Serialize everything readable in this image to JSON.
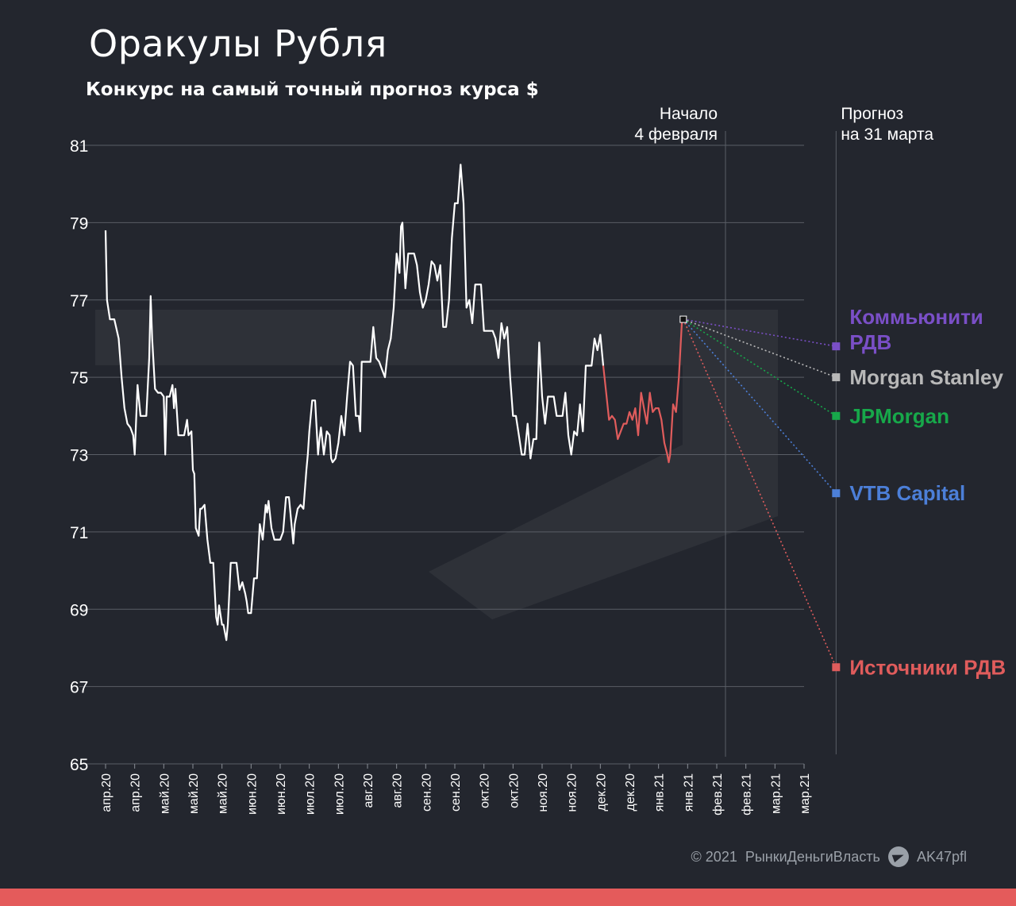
{
  "header": {
    "title": "Оракулы Рубля",
    "subtitle": "Конкурс на самый точный прогноз курса $"
  },
  "footer": {
    "copyright": "© 2021",
    "brand": "РынкиДеньгиВласть",
    "channel": "AK47pfl",
    "icon": "telegram-icon"
  },
  "colors": {
    "background": "#23262e",
    "history_line": "#ffffff",
    "contest_line": "#e05c5c",
    "grid": "#5a5e66",
    "accent_bar": "#e45b5b"
  },
  "chart_data": {
    "type": "line",
    "title": "Оракулы Рубля",
    "subtitle": "Конкурс на самый точный прогноз курса $",
    "ylim": [
      65,
      81
    ],
    "yticks": [
      65,
      67,
      69,
      71,
      73,
      75,
      77,
      79,
      81
    ],
    "grid": true,
    "x_tick_labels": [
      "апр.20",
      "апр.20",
      "май.20",
      "май.20",
      "май.20",
      "июн.20",
      "июн.20",
      "июл.20",
      "июл.20",
      "авг.20",
      "авг.20",
      "сен.20",
      "сен.20",
      "окт.20",
      "окт.20",
      "ноя.20",
      "ноя.20",
      "дек.20",
      "дек.20",
      "янв.21",
      "янв.21",
      "фев.21",
      "фев.21",
      "мар.21",
      "мар.21"
    ],
    "annotations": [
      {
        "text_line1": "Начало",
        "text_line2": "4 февраля",
        "x_index": 21.3
      },
      {
        "text_line1": "Прогноз",
        "text_line2": "на 31 марта",
        "x_index": 25.1
      }
    ],
    "series": [
      {
        "role": "history",
        "color": "#ffffff",
        "points": [
          [
            0,
            78.8
          ],
          [
            0.05,
            77.0
          ],
          [
            0.15,
            76.5
          ],
          [
            0.3,
            76.5
          ],
          [
            0.45,
            76.0
          ],
          [
            0.55,
            75.0
          ],
          [
            0.65,
            74.2
          ],
          [
            0.75,
            73.8
          ],
          [
            0.85,
            73.7
          ],
          [
            0.95,
            73.5
          ],
          [
            1.0,
            73.0
          ],
          [
            1.1,
            74.8
          ],
          [
            1.2,
            74.0
          ],
          [
            1.3,
            74.0
          ],
          [
            1.4,
            74.0
          ],
          [
            1.5,
            75.5
          ],
          [
            1.55,
            77.1
          ],
          [
            1.6,
            76.0
          ],
          [
            1.7,
            74.7
          ],
          [
            1.8,
            74.6
          ],
          [
            1.9,
            74.6
          ],
          [
            2.0,
            74.5
          ],
          [
            2.05,
            73.0
          ],
          [
            2.1,
            74.5
          ],
          [
            2.2,
            74.5
          ],
          [
            2.3,
            74.8
          ],
          [
            2.35,
            74.2
          ],
          [
            2.4,
            74.7
          ],
          [
            2.5,
            73.5
          ],
          [
            2.6,
            73.5
          ],
          [
            2.7,
            73.5
          ],
          [
            2.8,
            73.9
          ],
          [
            2.85,
            73.5
          ],
          [
            2.95,
            73.6
          ],
          [
            3.0,
            72.6
          ],
          [
            3.05,
            72.5
          ],
          [
            3.1,
            71.1
          ],
          [
            3.2,
            70.9
          ],
          [
            3.25,
            71.6
          ],
          [
            3.3,
            71.6
          ],
          [
            3.4,
            71.7
          ],
          [
            3.5,
            70.8
          ],
          [
            3.6,
            70.2
          ],
          [
            3.7,
            70.2
          ],
          [
            3.8,
            68.8
          ],
          [
            3.85,
            68.6
          ],
          [
            3.9,
            69.1
          ],
          [
            4.0,
            68.6
          ],
          [
            4.05,
            68.6
          ],
          [
            4.15,
            68.2
          ],
          [
            4.2,
            68.6
          ],
          [
            4.3,
            70.2
          ],
          [
            4.4,
            70.2
          ],
          [
            4.5,
            70.2
          ],
          [
            4.6,
            69.5
          ],
          [
            4.7,
            69.7
          ],
          [
            4.8,
            69.4
          ],
          [
            4.85,
            69.2
          ],
          [
            4.9,
            68.9
          ],
          [
            5.0,
            68.9
          ],
          [
            5.1,
            69.8
          ],
          [
            5.2,
            69.8
          ],
          [
            5.3,
            71.2
          ],
          [
            5.4,
            70.8
          ],
          [
            5.5,
            71.7
          ],
          [
            5.55,
            71.5
          ],
          [
            5.6,
            71.8
          ],
          [
            5.7,
            71.1
          ],
          [
            5.8,
            70.8
          ],
          [
            5.9,
            70.8
          ],
          [
            6.0,
            70.8
          ],
          [
            6.1,
            71.0
          ],
          [
            6.2,
            71.9
          ],
          [
            6.3,
            71.9
          ],
          [
            6.4,
            71.1
          ],
          [
            6.45,
            70.7
          ],
          [
            6.5,
            71.2
          ],
          [
            6.6,
            71.6
          ],
          [
            6.7,
            71.7
          ],
          [
            6.8,
            71.6
          ],
          [
            6.9,
            72.6
          ],
          [
            6.95,
            73.0
          ],
          [
            7.0,
            73.6
          ],
          [
            7.1,
            74.4
          ],
          [
            7.2,
            74.4
          ],
          [
            7.3,
            73.0
          ],
          [
            7.35,
            73.4
          ],
          [
            7.4,
            73.7
          ],
          [
            7.5,
            73.0
          ],
          [
            7.6,
            73.6
          ],
          [
            7.7,
            73.5
          ],
          [
            7.75,
            72.9
          ],
          [
            7.8,
            72.8
          ],
          [
            7.9,
            72.9
          ],
          [
            8.0,
            73.3
          ],
          [
            8.1,
            74.0
          ],
          [
            8.2,
            73.5
          ],
          [
            8.3,
            74.5
          ],
          [
            8.4,
            75.4
          ],
          [
            8.5,
            75.3
          ],
          [
            8.6,
            74.0
          ],
          [
            8.7,
            74.0
          ],
          [
            8.75,
            73.6
          ],
          [
            8.8,
            75.4
          ],
          [
            8.9,
            75.4
          ],
          [
            9.0,
            75.4
          ],
          [
            9.1,
            75.4
          ],
          [
            9.2,
            76.3
          ],
          [
            9.3,
            75.5
          ],
          [
            9.4,
            75.4
          ],
          [
            9.5,
            75.2
          ],
          [
            9.6,
            75.0
          ],
          [
            9.7,
            75.7
          ],
          [
            9.8,
            76.0
          ],
          [
            9.9,
            76.8
          ],
          [
            10.0,
            78.2
          ],
          [
            10.1,
            77.7
          ],
          [
            10.15,
            78.9
          ],
          [
            10.2,
            79.0
          ],
          [
            10.3,
            77.3
          ],
          [
            10.4,
            78.2
          ],
          [
            10.5,
            78.2
          ],
          [
            10.6,
            78.2
          ],
          [
            10.7,
            77.9
          ],
          [
            10.8,
            77.2
          ],
          [
            10.9,
            76.8
          ],
          [
            11.0,
            77.0
          ],
          [
            11.1,
            77.4
          ],
          [
            11.2,
            78.0
          ],
          [
            11.3,
            77.9
          ],
          [
            11.4,
            77.5
          ],
          [
            11.5,
            77.9
          ],
          [
            11.6,
            76.3
          ],
          [
            11.7,
            76.3
          ],
          [
            11.8,
            77.0
          ],
          [
            11.9,
            78.6
          ],
          [
            12.0,
            79.5
          ],
          [
            12.1,
            79.5
          ],
          [
            12.2,
            80.5
          ],
          [
            12.3,
            79.5
          ],
          [
            12.4,
            76.8
          ],
          [
            12.5,
            77.0
          ],
          [
            12.6,
            76.4
          ],
          [
            12.7,
            77.4
          ],
          [
            12.8,
            77.4
          ],
          [
            12.9,
            77.4
          ],
          [
            13.0,
            76.2
          ],
          [
            13.1,
            76.2
          ],
          [
            13.2,
            76.2
          ],
          [
            13.3,
            76.2
          ],
          [
            13.4,
            76.0
          ],
          [
            13.5,
            75.5
          ],
          [
            13.6,
            76.4
          ],
          [
            13.7,
            76.0
          ],
          [
            13.8,
            76.3
          ],
          [
            13.9,
            75.0
          ],
          [
            14.0,
            74.0
          ],
          [
            14.1,
            74.0
          ],
          [
            14.2,
            73.5
          ],
          [
            14.3,
            73.0
          ],
          [
            14.4,
            73.0
          ],
          [
            14.5,
            73.8
          ],
          [
            14.6,
            72.9
          ],
          [
            14.7,
            73.4
          ],
          [
            14.8,
            73.4
          ],
          [
            14.9,
            75.9
          ],
          [
            15.0,
            74.5
          ],
          [
            15.1,
            73.8
          ],
          [
            15.2,
            74.5
          ],
          [
            15.3,
            74.5
          ],
          [
            15.4,
            74.5
          ],
          [
            15.5,
            74.0
          ],
          [
            15.6,
            74.0
          ],
          [
            15.7,
            74.0
          ],
          [
            15.8,
            74.6
          ],
          [
            15.9,
            73.5
          ],
          [
            16.0,
            73.0
          ],
          [
            16.1,
            73.6
          ],
          [
            16.2,
            73.5
          ],
          [
            16.3,
            74.3
          ],
          [
            16.4,
            73.6
          ],
          [
            16.5,
            75.3
          ],
          [
            16.6,
            75.3
          ],
          [
            16.7,
            75.3
          ],
          [
            16.8,
            76.0
          ],
          [
            16.9,
            75.7
          ],
          [
            17.0,
            76.1
          ],
          [
            17.1,
            75.3
          ]
        ]
      },
      {
        "role": "contest",
        "color": "#e05c5c",
        "points": [
          [
            17.1,
            75.3
          ],
          [
            17.2,
            74.6
          ],
          [
            17.3,
            73.9
          ],
          [
            17.4,
            74.0
          ],
          [
            17.5,
            73.9
          ],
          [
            17.6,
            73.4
          ],
          [
            17.7,
            73.6
          ],
          [
            17.8,
            73.8
          ],
          [
            17.9,
            73.8
          ],
          [
            18.0,
            74.1
          ],
          [
            18.1,
            73.9
          ],
          [
            18.2,
            74.2
          ],
          [
            18.3,
            73.5
          ],
          [
            18.4,
            74.6
          ],
          [
            18.5,
            74.2
          ],
          [
            18.6,
            73.8
          ],
          [
            18.7,
            74.6
          ],
          [
            18.8,
            74.1
          ],
          [
            18.9,
            74.2
          ],
          [
            19.0,
            74.2
          ],
          [
            19.1,
            73.9
          ],
          [
            19.2,
            73.3
          ],
          [
            19.3,
            73.0
          ],
          [
            19.35,
            72.8
          ],
          [
            19.4,
            73.0
          ],
          [
            19.5,
            74.3
          ],
          [
            19.6,
            74.1
          ],
          [
            19.7,
            75.0
          ],
          [
            19.8,
            76.4
          ],
          [
            19.85,
            76.5
          ]
        ]
      }
    ],
    "last_value": 76.5,
    "forecasts": [
      {
        "label_line1": "Коммьюнити",
        "label_line2": "РДВ",
        "value": 75.8,
        "color": "#7a4fc7"
      },
      {
        "label_line1": "Morgan Stanley",
        "label_line2": "",
        "value": 75.0,
        "color": "#b8b8b8"
      },
      {
        "label_line1": "JPMorgan",
        "label_line2": "",
        "value": 74.0,
        "color": "#17a84a"
      },
      {
        "label_line1": "VTB Capital",
        "label_line2": "",
        "value": 72.0,
        "color": "#4c7fd8"
      },
      {
        "label_line1": "Источники  РДВ",
        "label_line2": "",
        "value": 67.5,
        "color": "#e05c5c"
      }
    ]
  }
}
